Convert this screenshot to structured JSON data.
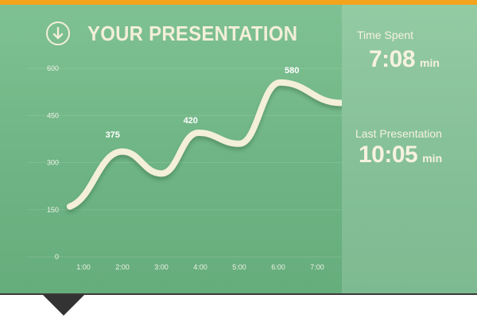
{
  "header": {
    "title": "YOUR PRESENTATION"
  },
  "stats": {
    "time_spent_label": "Time Spent",
    "time_spent_value": "7:08",
    "time_spent_unit": "min",
    "last_label": "Last Presentation",
    "last_value": "10:05",
    "last_unit": "min"
  },
  "colors": {
    "accent_bar": "#f3a41c",
    "panel_green": "#72b888",
    "curve": "#f3efd9",
    "text_light": "#f3efd9"
  },
  "chart_data": {
    "type": "line",
    "x_ticks": [
      "1:00",
      "2:00",
      "3:00",
      "4:00",
      "5:00",
      "6:00",
      "7:00"
    ],
    "y_ticks": [
      0,
      150,
      300,
      450,
      600
    ],
    "ylim": [
      0,
      600
    ],
    "xlim": [
      0.6,
      7.6
    ],
    "grid": true,
    "series": [
      {
        "x": [
          0.65,
          2.0,
          3.0,
          3.95,
          5.0,
          6.05,
          7.6
        ],
        "y": [
          160,
          335,
          265,
          395,
          360,
          555,
          490
        ]
      }
    ],
    "annotations": [
      {
        "x": 1.75,
        "y": 375,
        "text": "375"
      },
      {
        "x": 3.75,
        "y": 420,
        "text": "420"
      },
      {
        "x": 6.35,
        "y": 580,
        "text": "580"
      }
    ]
  }
}
